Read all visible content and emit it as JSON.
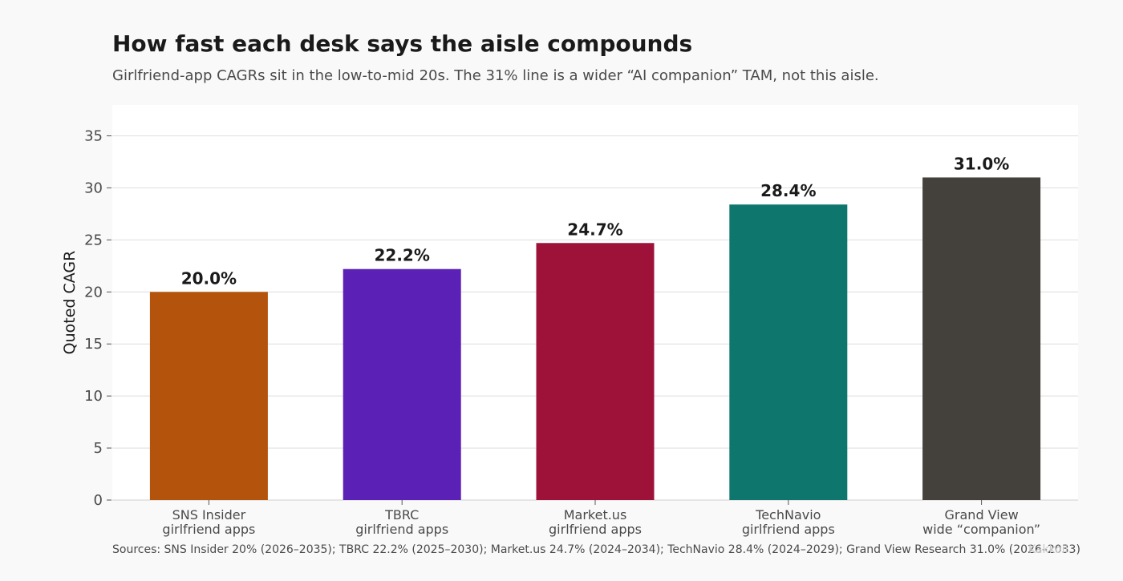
{
  "chart_data": {
    "type": "bar",
    "title": "How fast each desk says the aisle compounds",
    "subtitle": "Girlfriend-app CAGRs sit in the low-to-mid 20s. The 31% line is a wider “AI companion” TAM, not this aisle.",
    "ylabel": "Quoted CAGR",
    "xlabel": "",
    "ylim": [
      0,
      37
    ],
    "yticks": [
      0,
      5,
      10,
      15,
      20,
      25,
      30,
      35
    ],
    "grid": true,
    "categories": [
      [
        "SNS Insider",
        "girlfriend apps"
      ],
      [
        "TBRC",
        "girlfriend apps"
      ],
      [
        "Market.us",
        "girlfriend apps"
      ],
      [
        "TechNavio",
        "girlfriend apps"
      ],
      [
        "Grand View",
        "wide “companion”"
      ]
    ],
    "values": [
      20.0,
      22.2,
      24.7,
      28.4,
      31.0
    ],
    "data_labels": [
      "20.0%",
      "22.2%",
      "24.7%",
      "28.4%",
      "31.0%"
    ],
    "colors": [
      "#b4530b",
      "#5b21b6",
      "#9e1239",
      "#0f766e",
      "#44403c"
    ]
  },
  "footer": {
    "sources": "Sources: SNS Insider 20% (2026–2035); TBRC 22.2% (2025–2030); Market.us 24.7% (2024–2034); TechNavio 28.4% (2024–2029); Grand View Research 31.0% (2026–2033)",
    "watermark": "Kakkoii"
  }
}
